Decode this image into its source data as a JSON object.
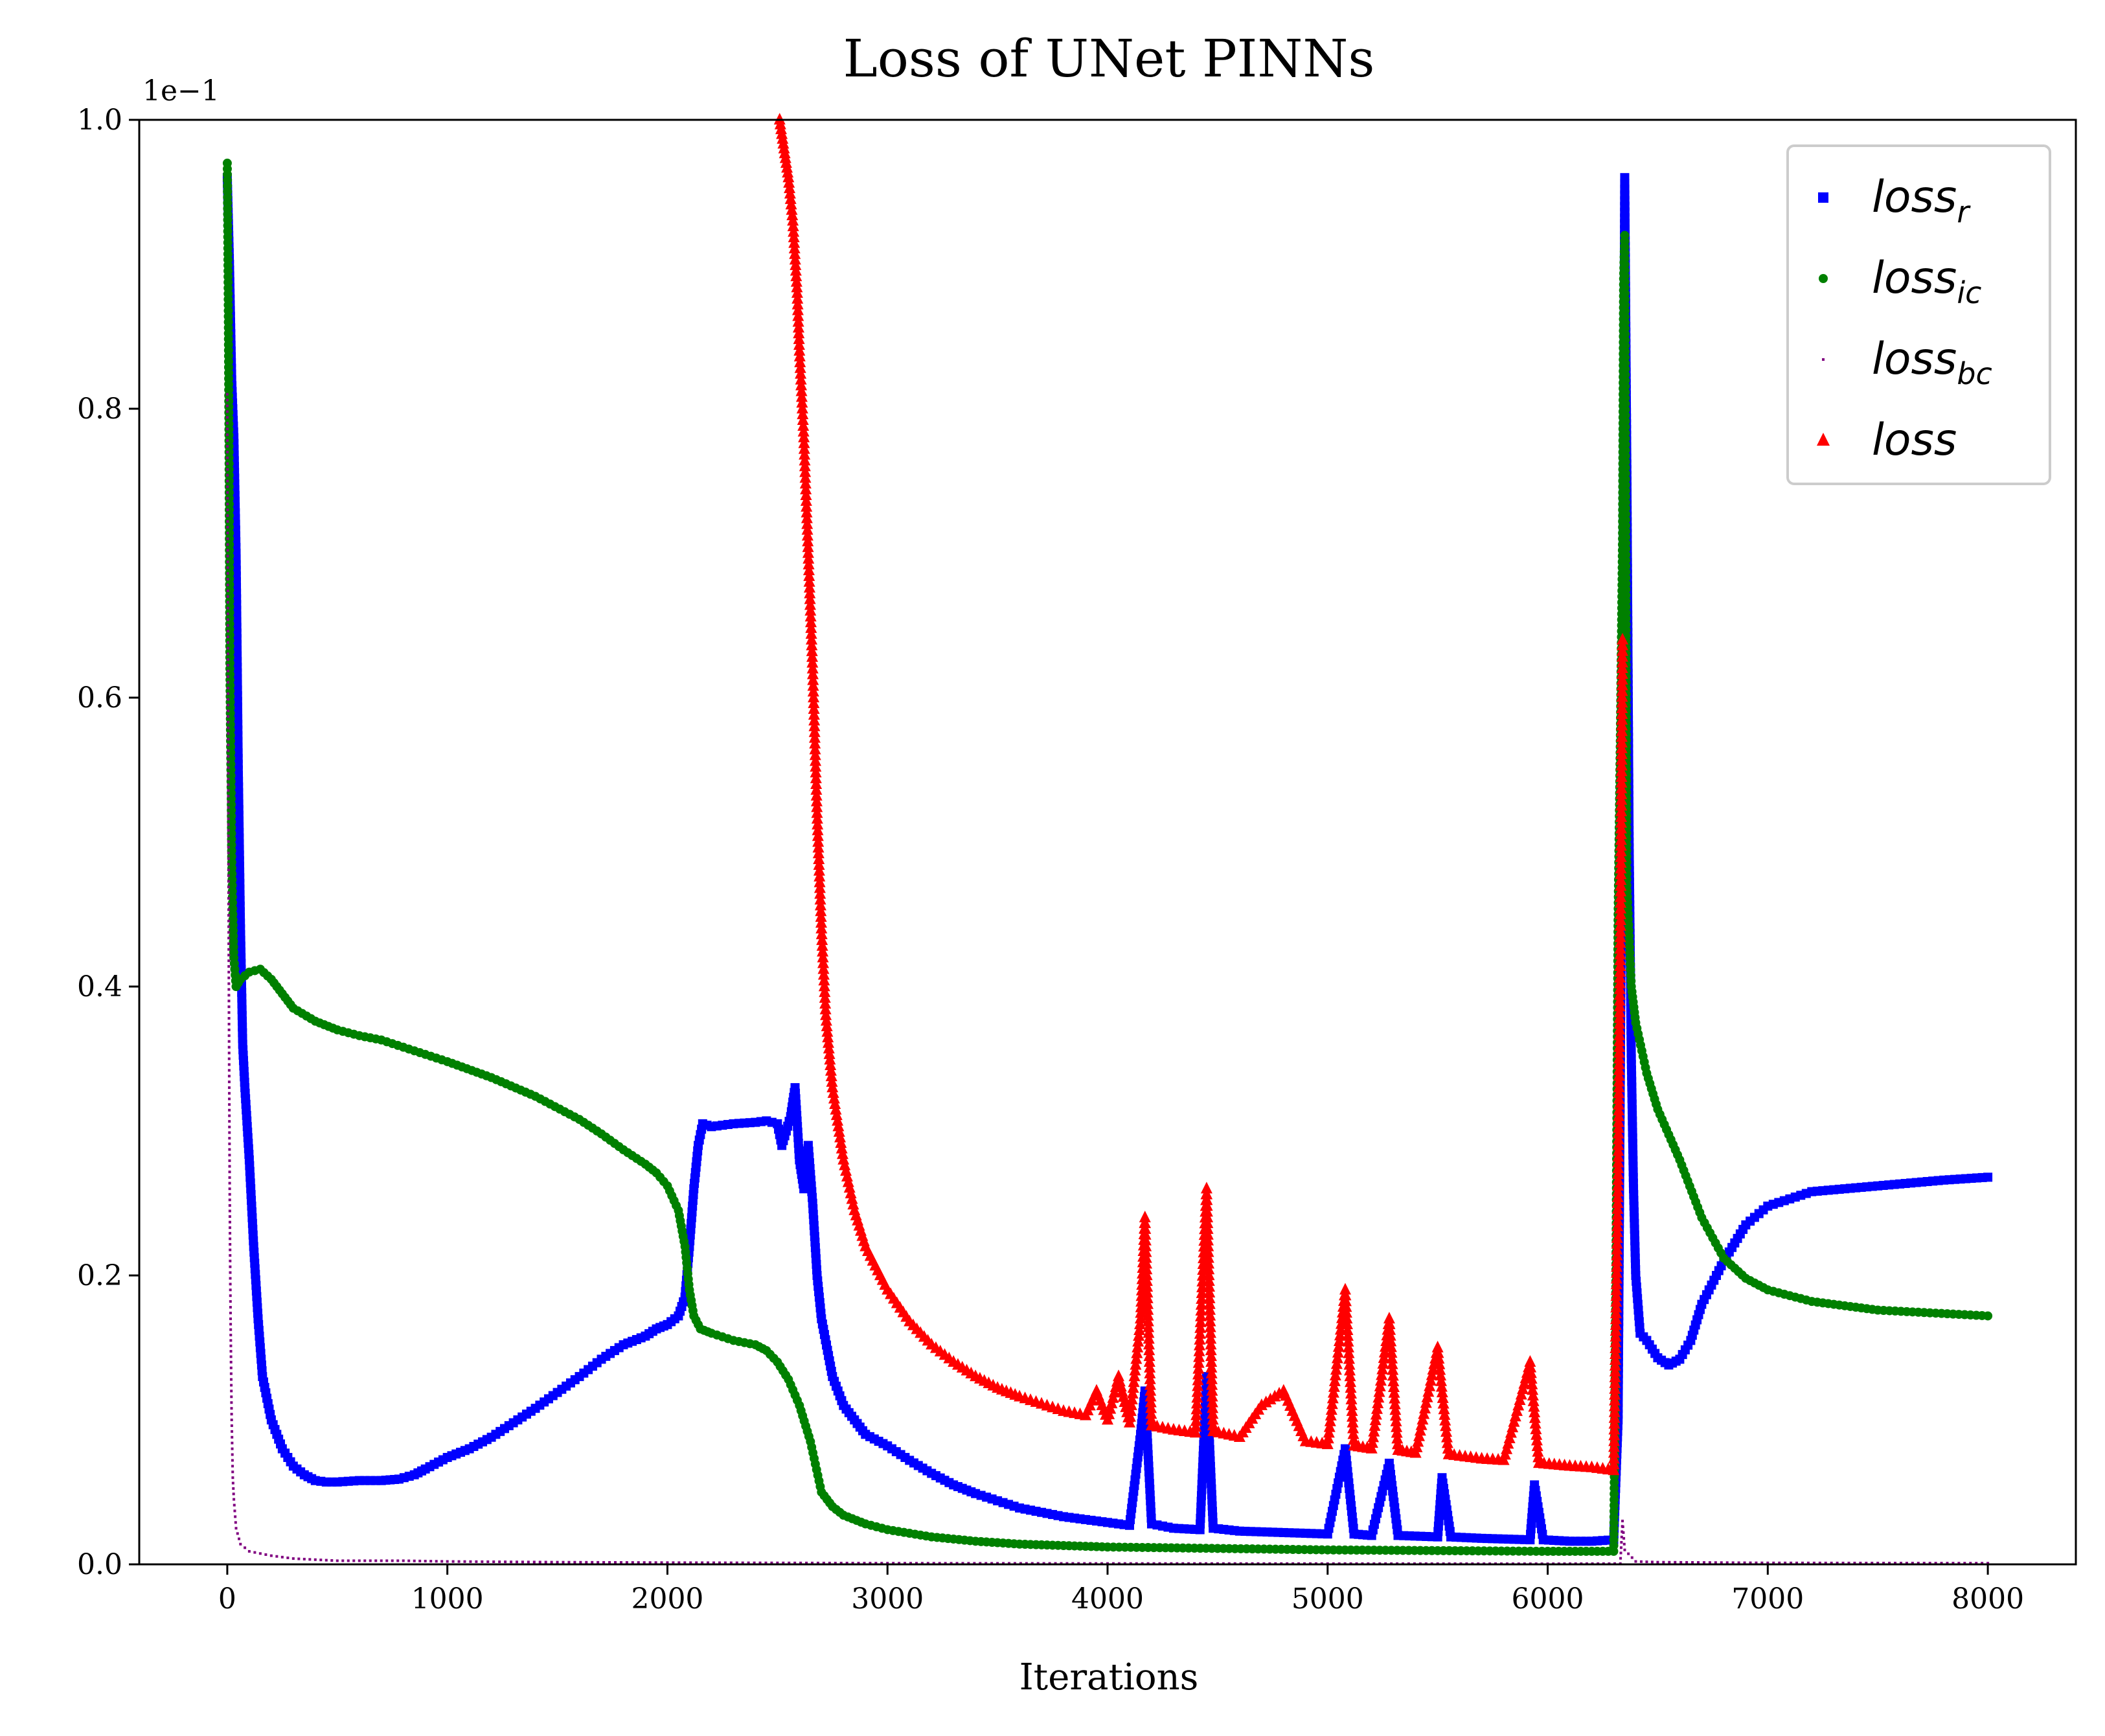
{
  "chart_data": {
    "type": "scatter",
    "title": "Loss of UNet PINNs",
    "xlabel": "Iterations",
    "ylabel": "",
    "y_offset_label": "1e−1",
    "xlim": [
      -400,
      8400
    ],
    "ylim": [
      0.0,
      1.0
    ],
    "x_ticks": [
      0,
      1000,
      2000,
      3000,
      4000,
      5000,
      6000,
      7000,
      8000
    ],
    "x_tick_labels": [
      "0",
      "1000",
      "2000",
      "3000",
      "4000",
      "5000",
      "6000",
      "7000",
      "8000"
    ],
    "y_ticks": [
      0.0,
      0.2,
      0.4,
      0.6,
      0.8,
      1.0
    ],
    "y_tick_labels": [
      "0.0",
      "0.2",
      "0.4",
      "0.6",
      "0.8",
      "1.0"
    ],
    "grid": false,
    "legend_position": "top-right",
    "series": [
      {
        "name": "loss_r",
        "legend_base": "loss",
        "legend_sub": "r",
        "color": "#0000ff",
        "marker": "square",
        "points": [
          [
            0,
            0.96
          ],
          [
            10,
            0.9
          ],
          [
            20,
            0.82
          ],
          [
            30,
            0.78
          ],
          [
            40,
            0.7
          ],
          [
            50,
            0.55
          ],
          [
            60,
            0.44
          ],
          [
            70,
            0.36
          ],
          [
            80,
            0.33
          ],
          [
            100,
            0.28
          ],
          [
            120,
            0.22
          ],
          [
            140,
            0.17
          ],
          [
            160,
            0.13
          ],
          [
            200,
            0.1
          ],
          [
            250,
            0.08
          ],
          [
            300,
            0.068
          ],
          [
            350,
            0.062
          ],
          [
            400,
            0.058
          ],
          [
            450,
            0.057
          ],
          [
            500,
            0.057
          ],
          [
            600,
            0.058
          ],
          [
            700,
            0.058
          ],
          [
            780,
            0.059
          ],
          [
            850,
            0.062
          ],
          [
            900,
            0.066
          ],
          [
            1000,
            0.074
          ],
          [
            1100,
            0.08
          ],
          [
            1200,
            0.088
          ],
          [
            1300,
            0.098
          ],
          [
            1400,
            0.108
          ],
          [
            1500,
            0.119
          ],
          [
            1600,
            0.13
          ],
          [
            1700,
            0.142
          ],
          [
            1800,
            0.152
          ],
          [
            1900,
            0.158
          ],
          [
            1950,
            0.163
          ],
          [
            2000,
            0.166
          ],
          [
            2050,
            0.172
          ],
          [
            2080,
            0.185
          ],
          [
            2100,
            0.22
          ],
          [
            2120,
            0.26
          ],
          [
            2140,
            0.29
          ],
          [
            2160,
            0.305
          ],
          [
            2200,
            0.303
          ],
          [
            2300,
            0.305
          ],
          [
            2400,
            0.306
          ],
          [
            2450,
            0.307
          ],
          [
            2500,
            0.305
          ],
          [
            2520,
            0.29
          ],
          [
            2540,
            0.3
          ],
          [
            2560,
            0.31
          ],
          [
            2580,
            0.33
          ],
          [
            2600,
            0.28
          ],
          [
            2620,
            0.26
          ],
          [
            2640,
            0.29
          ],
          [
            2660,
            0.25
          ],
          [
            2680,
            0.2
          ],
          [
            2700,
            0.17
          ],
          [
            2750,
            0.13
          ],
          [
            2800,
            0.11
          ],
          [
            2850,
            0.1
          ],
          [
            2900,
            0.09
          ],
          [
            3000,
            0.082
          ],
          [
            3100,
            0.072
          ],
          [
            3200,
            0.063
          ],
          [
            3300,
            0.055
          ],
          [
            3400,
            0.049
          ],
          [
            3500,
            0.044
          ],
          [
            3600,
            0.039
          ],
          [
            3700,
            0.036
          ],
          [
            3800,
            0.033
          ],
          [
            3900,
            0.031
          ],
          [
            4000,
            0.029
          ],
          [
            4100,
            0.027
          ],
          [
            4150,
            0.09
          ],
          [
            4170,
            0.12
          ],
          [
            4200,
            0.028
          ],
          [
            4300,
            0.025
          ],
          [
            4420,
            0.024
          ],
          [
            4450,
            0.13
          ],
          [
            4480,
            0.025
          ],
          [
            4600,
            0.023
          ],
          [
            4800,
            0.022
          ],
          [
            5000,
            0.021
          ],
          [
            5080,
            0.08
          ],
          [
            5120,
            0.021
          ],
          [
            5200,
            0.02
          ],
          [
            5280,
            0.07
          ],
          [
            5320,
            0.02
          ],
          [
            5500,
            0.019
          ],
          [
            5520,
            0.06
          ],
          [
            5560,
            0.019
          ],
          [
            5700,
            0.018
          ],
          [
            5920,
            0.017
          ],
          [
            5940,
            0.055
          ],
          [
            5980,
            0.017
          ],
          [
            6100,
            0.016
          ],
          [
            6200,
            0.016
          ],
          [
            6300,
            0.017
          ],
          [
            6320,
            0.1
          ],
          [
            6330,
            0.34
          ],
          [
            6340,
            0.6
          ],
          [
            6350,
            0.96
          ],
          [
            6360,
            0.75
          ],
          [
            6370,
            0.5
          ],
          [
            6380,
            0.35
          ],
          [
            6390,
            0.26
          ],
          [
            6400,
            0.2
          ],
          [
            6420,
            0.16
          ],
          [
            6450,
            0.155
          ],
          [
            6500,
            0.143
          ],
          [
            6550,
            0.138
          ],
          [
            6600,
            0.142
          ],
          [
            6650,
            0.155
          ],
          [
            6700,
            0.18
          ],
          [
            6800,
            0.21
          ],
          [
            6900,
            0.235
          ],
          [
            7000,
            0.248
          ],
          [
            7200,
            0.258
          ],
          [
            7500,
            0.262
          ],
          [
            7800,
            0.266
          ],
          [
            8000,
            0.268
          ]
        ]
      },
      {
        "name": "loss_ic",
        "legend_base": "loss",
        "legend_sub": "ic",
        "color": "#008000",
        "marker": "circle",
        "points": [
          [
            0,
            0.97
          ],
          [
            5,
            0.86
          ],
          [
            8,
            0.77
          ],
          [
            10,
            0.69
          ],
          [
            12,
            0.62
          ],
          [
            15,
            0.57
          ],
          [
            18,
            0.53
          ],
          [
            20,
            0.49
          ],
          [
            25,
            0.45
          ],
          [
            30,
            0.42
          ],
          [
            40,
            0.4
          ],
          [
            60,
            0.405
          ],
          [
            100,
            0.41
          ],
          [
            150,
            0.412
          ],
          [
            200,
            0.405
          ],
          [
            250,
            0.395
          ],
          [
            300,
            0.385
          ],
          [
            400,
            0.376
          ],
          [
            500,
            0.37
          ],
          [
            600,
            0.366
          ],
          [
            700,
            0.363
          ],
          [
            800,
            0.358
          ],
          [
            1000,
            0.348
          ],
          [
            1200,
            0.337
          ],
          [
            1400,
            0.324
          ],
          [
            1600,
            0.308
          ],
          [
            1700,
            0.298
          ],
          [
            1800,
            0.287
          ],
          [
            1900,
            0.277
          ],
          [
            1950,
            0.271
          ],
          [
            2000,
            0.262
          ],
          [
            2050,
            0.245
          ],
          [
            2080,
            0.22
          ],
          [
            2100,
            0.19
          ],
          [
            2120,
            0.172
          ],
          [
            2150,
            0.163
          ],
          [
            2200,
            0.16
          ],
          [
            2300,
            0.155
          ],
          [
            2400,
            0.152
          ],
          [
            2450,
            0.148
          ],
          [
            2500,
            0.14
          ],
          [
            2550,
            0.128
          ],
          [
            2600,
            0.11
          ],
          [
            2650,
            0.085
          ],
          [
            2700,
            0.05
          ],
          [
            2750,
            0.04
          ],
          [
            2800,
            0.034
          ],
          [
            2900,
            0.028
          ],
          [
            3000,
            0.024
          ],
          [
            3200,
            0.019
          ],
          [
            3400,
            0.016
          ],
          [
            3600,
            0.014
          ],
          [
            3800,
            0.013
          ],
          [
            4000,
            0.012
          ],
          [
            4500,
            0.011
          ],
          [
            5000,
            0.01
          ],
          [
            5500,
            0.0095
          ],
          [
            6000,
            0.009
          ],
          [
            6300,
            0.009
          ],
          [
            6310,
            0.2
          ],
          [
            6320,
            0.45
          ],
          [
            6330,
            0.57
          ],
          [
            6340,
            0.71
          ],
          [
            6345,
            0.89
          ],
          [
            6350,
            0.92
          ],
          [
            6360,
            0.47
          ],
          [
            6380,
            0.4
          ],
          [
            6400,
            0.375
          ],
          [
            6450,
            0.34
          ],
          [
            6500,
            0.315
          ],
          [
            6600,
            0.28
          ],
          [
            6700,
            0.24
          ],
          [
            6800,
            0.212
          ],
          [
            6900,
            0.198
          ],
          [
            7000,
            0.19
          ],
          [
            7200,
            0.182
          ],
          [
            7500,
            0.176
          ],
          [
            8000,
            0.172
          ]
        ]
      },
      {
        "name": "loss_bc",
        "legend_base": "loss",
        "legend_sub": "bc",
        "color": "#800080",
        "marker": "pixel",
        "points": [
          [
            0,
            0.81
          ],
          [
            3,
            0.65
          ],
          [
            5,
            0.52
          ],
          [
            7,
            0.41
          ],
          [
            9,
            0.33
          ],
          [
            11,
            0.26
          ],
          [
            13,
            0.21
          ],
          [
            15,
            0.17
          ],
          [
            17,
            0.14
          ],
          [
            20,
            0.1
          ],
          [
            25,
            0.06
          ],
          [
            30,
            0.045
          ],
          [
            40,
            0.025
          ],
          [
            60,
            0.014
          ],
          [
            100,
            0.009
          ],
          [
            200,
            0.006
          ],
          [
            300,
            0.004
          ],
          [
            500,
            0.0025
          ],
          [
            800,
            0.0025
          ],
          [
            1000,
            0.002
          ],
          [
            1500,
            0.0015
          ],
          [
            2000,
            0.0012
          ],
          [
            2500,
            0.001
          ],
          [
            3000,
            0.0008
          ],
          [
            4000,
            0.0006
          ],
          [
            5000,
            0.0005
          ],
          [
            6000,
            0.0004
          ],
          [
            6330,
            0.0005
          ],
          [
            6340,
            0.03
          ],
          [
            6350,
            0.01
          ],
          [
            6400,
            0.002
          ],
          [
            6500,
            0.0015
          ],
          [
            7000,
            0.001
          ],
          [
            8000,
            0.0008
          ]
        ]
      },
      {
        "name": "loss",
        "legend_base": "loss",
        "legend_sub": "",
        "color": "#ff0000",
        "marker": "triangle",
        "points": [
          [
            2510,
            1.0
          ],
          [
            2530,
            0.98
          ],
          [
            2550,
            0.96
          ],
          [
            2570,
            0.93
          ],
          [
            2590,
            0.88
          ],
          [
            2600,
            0.84
          ],
          [
            2620,
            0.78
          ],
          [
            2640,
            0.7
          ],
          [
            2660,
            0.62
          ],
          [
            2680,
            0.52
          ],
          [
            2700,
            0.44
          ],
          [
            2720,
            0.38
          ],
          [
            2750,
            0.33
          ],
          [
            2800,
            0.28
          ],
          [
            2850,
            0.245
          ],
          [
            2900,
            0.22
          ],
          [
            3000,
            0.19
          ],
          [
            3100,
            0.168
          ],
          [
            3200,
            0.152
          ],
          [
            3300,
            0.14
          ],
          [
            3400,
            0.13
          ],
          [
            3500,
            0.122
          ],
          [
            3600,
            0.116
          ],
          [
            3700,
            0.111
          ],
          [
            3800,
            0.106
          ],
          [
            3900,
            0.103
          ],
          [
            3950,
            0.12
          ],
          [
            4000,
            0.1
          ],
          [
            4050,
            0.13
          ],
          [
            4100,
            0.098
          ],
          [
            4150,
            0.17
          ],
          [
            4170,
            0.24
          ],
          [
            4200,
            0.096
          ],
          [
            4300,
            0.093
          ],
          [
            4400,
            0.091
          ],
          [
            4450,
            0.26
          ],
          [
            4480,
            0.092
          ],
          [
            4600,
            0.088
          ],
          [
            4700,
            0.11
          ],
          [
            4800,
            0.12
          ],
          [
            4900,
            0.085
          ],
          [
            5000,
            0.083
          ],
          [
            5080,
            0.19
          ],
          [
            5120,
            0.082
          ],
          [
            5200,
            0.08
          ],
          [
            5280,
            0.17
          ],
          [
            5320,
            0.079
          ],
          [
            5400,
            0.077
          ],
          [
            5500,
            0.15
          ],
          [
            5550,
            0.076
          ],
          [
            5700,
            0.073
          ],
          [
            5800,
            0.072
          ],
          [
            5920,
            0.14
          ],
          [
            5960,
            0.07
          ],
          [
            6100,
            0.068
          ],
          [
            6200,
            0.067
          ],
          [
            6300,
            0.065
          ],
          [
            6320,
            0.27
          ],
          [
            6330,
            0.43
          ],
          [
            6340,
            0.64
          ]
        ]
      }
    ]
  }
}
